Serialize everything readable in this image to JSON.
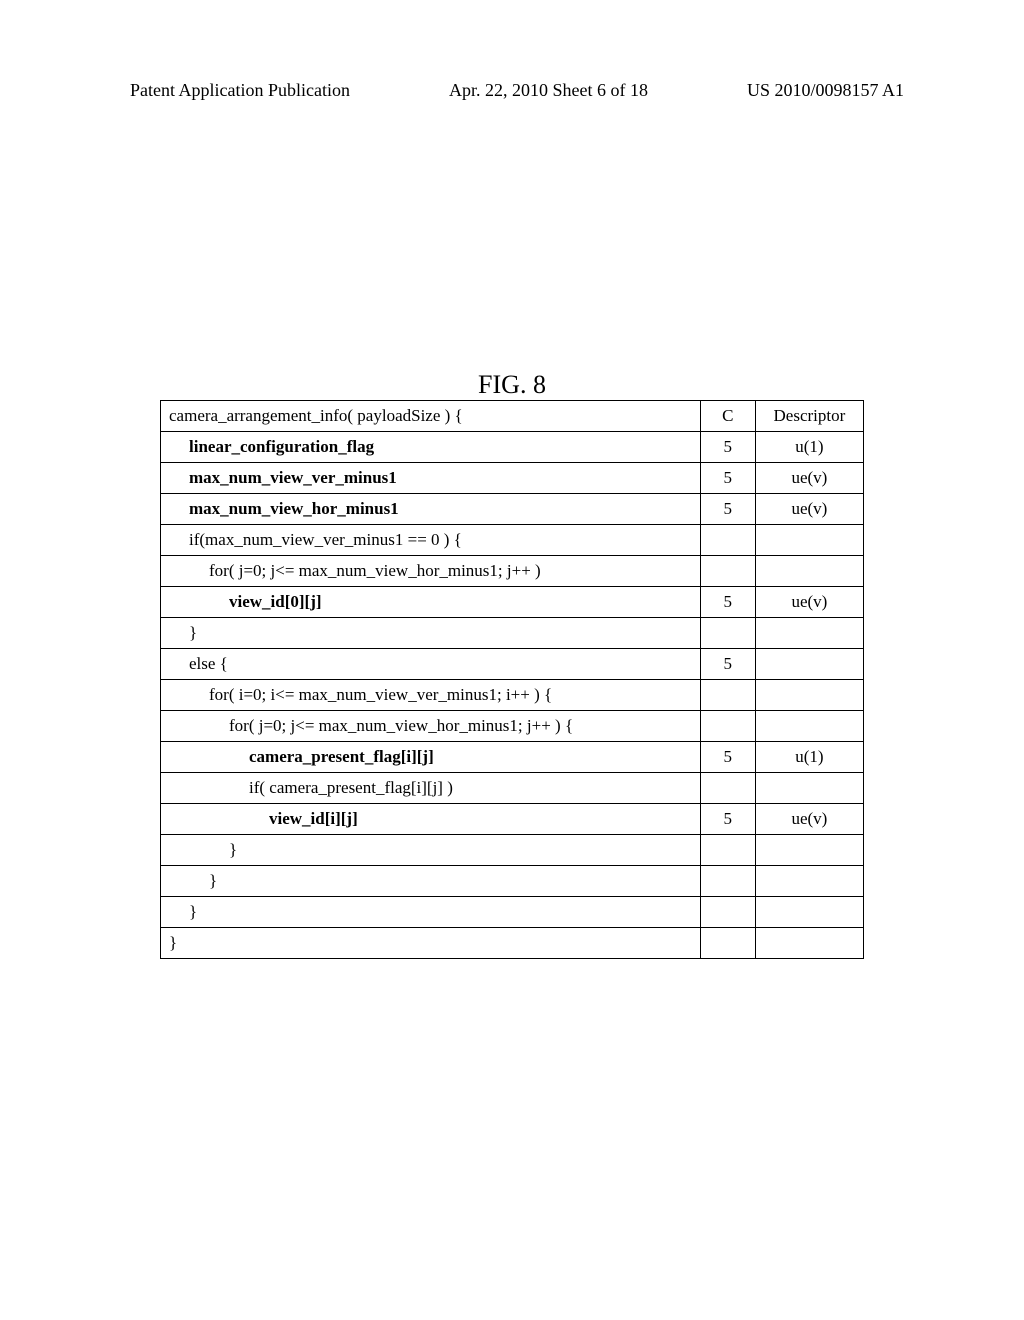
{
  "header": {
    "left": "Patent Application Publication",
    "center": "Apr. 22, 2010  Sheet 6 of 18",
    "right": "US 2010/0098157 A1"
  },
  "figure_label": "FIG. 8",
  "table": {
    "header_c": "C",
    "header_desc": "Descriptor",
    "rows": [
      {
        "syntax": "camera_arrangement_info( payloadSize ) {",
        "c": "",
        "desc": "",
        "indent": 0,
        "bold": false
      },
      {
        "syntax": "linear_configuration_flag",
        "c": "5",
        "desc": "u(1)",
        "indent": 1,
        "bold": true
      },
      {
        "syntax": "max_num_view_ver_minus1",
        "c": "5",
        "desc": "ue(v)",
        "indent": 1,
        "bold": true
      },
      {
        "syntax": "max_num_view_hor_minus1",
        "c": "5",
        "desc": "ue(v)",
        "indent": 1,
        "bold": true
      },
      {
        "syntax": "if(max_num_view_ver_minus1 == 0 ) {",
        "c": "",
        "desc": "",
        "indent": 1,
        "bold": false
      },
      {
        "syntax": "for( j=0; j<= max_num_view_hor_minus1; j++ )",
        "c": "",
        "desc": "",
        "indent": 2,
        "bold": false
      },
      {
        "syntax": "view_id[0][j]",
        "c": "5",
        "desc": "ue(v)",
        "indent": 3,
        "bold": true
      },
      {
        "syntax": "}",
        "c": "",
        "desc": "",
        "indent": 1,
        "bold": false
      },
      {
        "syntax": "else {",
        "c": "5",
        "desc": "",
        "indent": 1,
        "bold": false
      },
      {
        "syntax": "for( i=0; i<= max_num_view_ver_minus1; i++ ) {",
        "c": "",
        "desc": "",
        "indent": 2,
        "bold": false
      },
      {
        "syntax": "for( j=0; j<= max_num_view_hor_minus1; j++ ) {",
        "c": "",
        "desc": "",
        "indent": 3,
        "bold": false
      },
      {
        "syntax": "camera_present_flag[i][j]",
        "c": "5",
        "desc": "u(1)",
        "indent": 4,
        "bold": true
      },
      {
        "syntax": "if( camera_present_flag[i][j] )",
        "c": "",
        "desc": "",
        "indent": 4,
        "bold": false
      },
      {
        "syntax": "view_id[i][j]",
        "c": "5",
        "desc": "ue(v)",
        "indent": 5,
        "bold": true
      },
      {
        "syntax": "}",
        "c": "",
        "desc": "",
        "indent": 3,
        "bold": false
      },
      {
        "syntax": "}",
        "c": "",
        "desc": "",
        "indent": 2,
        "bold": false
      },
      {
        "syntax": "}",
        "c": "",
        "desc": "",
        "indent": 1,
        "bold": false
      },
      {
        "syntax": "}",
        "c": "",
        "desc": "",
        "indent": 0,
        "bold": false
      }
    ]
  }
}
